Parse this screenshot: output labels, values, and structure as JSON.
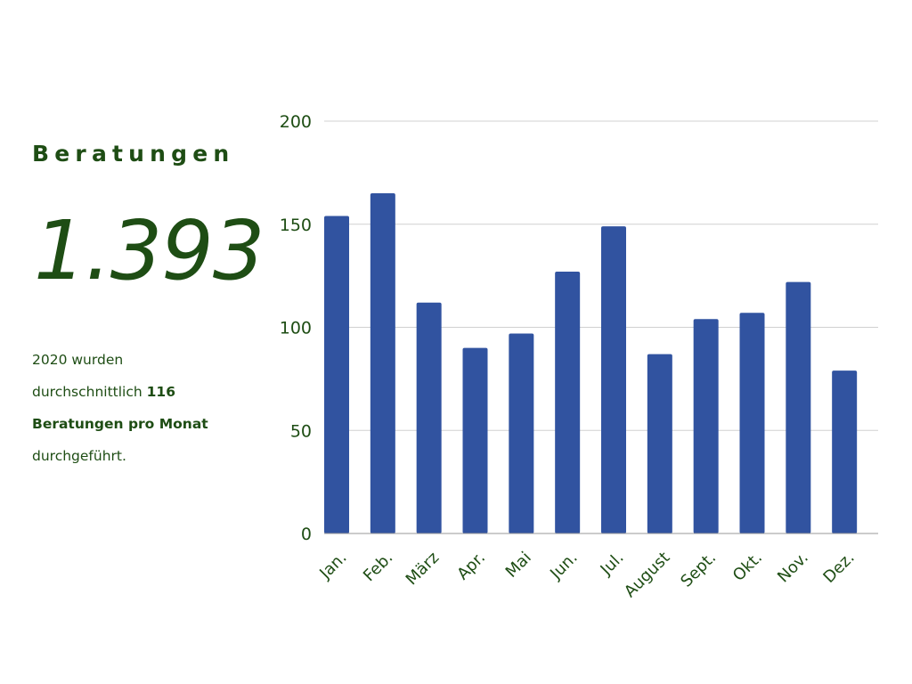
{
  "summary": {
    "heading": "Beratungen",
    "total": "1.393",
    "text_line1": "2020 wurden",
    "text_line2_prefix": "durchschnittlich ",
    "text_line2_bold": "116",
    "text_line3_bold": "Beratungen pro Monat",
    "text_line4": "durchgeführt."
  },
  "colors": {
    "text": "#1e4d14",
    "bar": "#3153a0",
    "grid": "#d0d0d0"
  },
  "chart_data": {
    "type": "bar",
    "title": "",
    "xlabel": "",
    "ylabel": "",
    "categories": [
      "Jan.",
      "Feb.",
      "März",
      "Apr.",
      "Mai",
      "Jun.",
      "Jul.",
      "August",
      "Sept.",
      "Okt.",
      "Nov.",
      "Dez."
    ],
    "values": [
      154,
      165,
      112,
      90,
      97,
      127,
      149,
      87,
      104,
      107,
      122,
      79
    ],
    "ylim": [
      0,
      200
    ],
    "yticks": [
      0,
      50,
      100,
      150,
      200
    ],
    "grid": true,
    "legend": "none"
  }
}
